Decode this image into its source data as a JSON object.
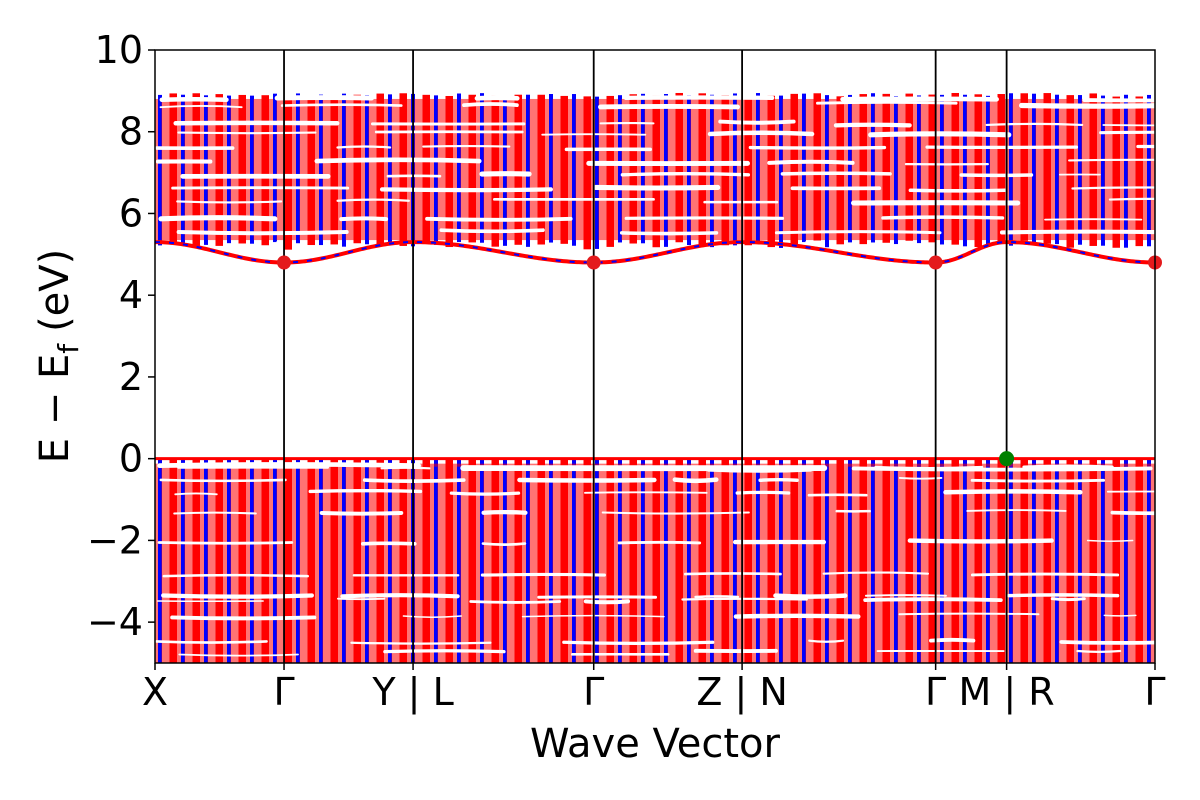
{
  "chart_data": {
    "type": "line",
    "title": "",
    "xlabel": "Wave Vector",
    "ylabel": "E − E",
    "ylabel_subscript": "f",
    "ylabel_unit": "(eV)",
    "ylim": [
      -5,
      10
    ],
    "yticks": [
      -4,
      -2,
      0,
      2,
      4,
      6,
      8,
      10
    ],
    "ytick_labels": [
      "−4",
      "−2",
      "0",
      "2",
      "4",
      "6",
      "8",
      "10"
    ],
    "xlim": [
      0,
      7.75
    ],
    "xticks": [
      0,
      1,
      2,
      3.4,
      4.55,
      6.05,
      6.6,
      7.75
    ],
    "xtick_labels": [
      "X",
      "Γ",
      "Y | L",
      "Γ",
      "Z | N",
      "Γ",
      "M | R",
      "Γ"
    ],
    "segment_boundaries": [
      1,
      2,
      3.4,
      4.55,
      6.05,
      6.6
    ],
    "series": [
      {
        "name": "",
        "color": "#ff0000"
      },
      {
        "name": "",
        "color": "#0000ff"
      }
    ],
    "valence_band_max": {
      "energy": 0,
      "k": 6.6
    },
    "conduction_band_min": {
      "energy": 4.8,
      "k": [
        1,
        3.4,
        6.05,
        7.75
      ]
    },
    "conduction_region": [
      5.3,
      8.9
    ],
    "valence_region": [
      -5,
      0
    ],
    "grid": false,
    "colors": {
      "red": "#ff0000",
      "blue": "#0000ff",
      "vbm_marker": "#008000",
      "cbm_marker": "#e41a1c"
    }
  }
}
